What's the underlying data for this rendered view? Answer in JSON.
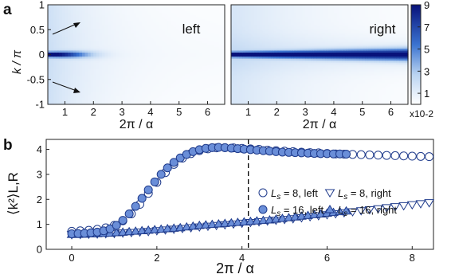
{
  "colors": {
    "heat_low": "#ffffff",
    "heat_high": "#08127a",
    "marker_edge": "#1f3b8c",
    "marker_fill": "#6a8ed8",
    "dashed_line": "#000000"
  },
  "panel_a": {
    "label": "a",
    "ylabel": "k / π",
    "xlabel": "2π / α",
    "colorbar_ticks": [
      "9",
      "7",
      "5",
      "3",
      "1"
    ],
    "colorbar_multiplier": "x10-2"
  },
  "panel_b": {
    "label": "b",
    "ylabel": "⟨k²⟩L,R",
    "xlabel": "2π / α"
  },
  "chart_data": [
    {
      "type": "heatmap",
      "title": "left",
      "xlabel": "2π / α",
      "ylabel": "k / π",
      "xlim": [
        0.4,
        6.6
      ],
      "ylim": [
        -1,
        1
      ],
      "xticks": [
        1,
        2,
        3,
        4,
        5,
        6
      ],
      "yticks": [
        1,
        0.5,
        0,
        -0.5,
        -1
      ],
      "ytick_labels": [
        "1",
        "0.5",
        "0",
        "-0.5",
        "-1"
      ],
      "annotations": [
        "arrow at k/π ≈ 0.7, 2π/α ≈ 0.9",
        "arrow at k/π ≈ -0.75, 2π/α ≈ 0.9"
      ],
      "colorbar": {
        "range": [
          0,
          0.09
        ],
        "ticks": [
          1,
          3,
          5,
          7,
          9
        ],
        "multiplier": "x10-2"
      },
      "description": "weight concentrated at k=0 for small 2π/α, decaying to near zero beyond 2π/α≈4"
    },
    {
      "type": "heatmap",
      "title": "right",
      "xlabel": "2π / α",
      "xlim": [
        0.4,
        6.6
      ],
      "ylim": [
        -1,
        1
      ],
      "xticks": [
        1,
        2,
        3,
        4,
        5,
        6
      ],
      "colorbar": {
        "range": [
          0,
          0.09
        ],
        "ticks": [
          1,
          3,
          5,
          7,
          9
        ],
        "multiplier": "x10-2"
      },
      "description": "strong band at k=0 for all 2π/α"
    },
    {
      "type": "scatter",
      "xlabel": "2π / α",
      "ylabel": "⟨k²⟩L,R",
      "xlim": [
        -0.6,
        8.5
      ],
      "ylim": [
        0,
        4.4
      ],
      "xticks": [
        0,
        2,
        4,
        6,
        8
      ],
      "yticks": [
        0,
        1,
        2,
        3,
        4
      ],
      "grid": false,
      "legend_position": "right",
      "vertical_dashed_line_x": 4.15,
      "series": [
        {
          "name": "Ls = 8, left",
          "marker": "open-circle",
          "x": [
            0.0,
            0.2,
            0.4,
            0.6,
            0.8,
            1.0,
            1.2,
            1.4,
            1.6,
            1.8,
            2.0,
            2.2,
            2.4,
            2.6,
            2.8,
            3.0,
            3.2,
            3.4,
            3.6,
            3.8,
            4.0,
            4.2,
            4.4,
            4.6,
            4.8,
            5.0,
            5.2,
            5.4,
            5.6,
            5.8,
            6.0,
            6.2,
            6.4,
            6.6,
            6.8,
            7.0,
            7.2,
            7.4,
            7.6,
            7.8,
            8.0,
            8.2,
            8.4
          ],
          "y": [
            0.72,
            0.74,
            0.76,
            0.8,
            0.86,
            0.96,
            1.14,
            1.42,
            1.8,
            2.24,
            2.68,
            3.07,
            3.4,
            3.65,
            3.83,
            3.95,
            4.02,
            4.06,
            4.07,
            4.06,
            4.04,
            4.02,
            4.0,
            3.97,
            3.95,
            3.93,
            3.91,
            3.89,
            3.87,
            3.86,
            3.84,
            3.82,
            3.81,
            3.8,
            3.79,
            3.78,
            3.77,
            3.76,
            3.75,
            3.74,
            3.73,
            3.72,
            3.71
          ]
        },
        {
          "name": "Ls = 16, left",
          "marker": "filled-circle",
          "x": [
            0.0,
            0.15,
            0.3,
            0.45,
            0.6,
            0.75,
            0.9,
            1.05,
            1.2,
            1.35,
            1.5,
            1.65,
            1.8,
            1.95,
            2.1,
            2.25,
            2.4,
            2.55,
            2.7,
            2.85,
            3.0,
            3.15,
            3.3,
            3.45,
            3.6,
            3.75,
            3.9,
            4.05,
            4.2,
            4.35,
            4.5,
            4.65,
            4.8,
            4.95,
            5.1,
            5.25,
            5.4,
            5.55,
            5.7,
            5.85,
            6.0,
            6.15,
            6.3,
            6.45
          ],
          "y": [
            0.62,
            0.63,
            0.64,
            0.66,
            0.69,
            0.74,
            0.82,
            0.96,
            1.16,
            1.42,
            1.72,
            2.04,
            2.38,
            2.7,
            3.0,
            3.26,
            3.48,
            3.66,
            3.8,
            3.91,
            3.99,
            4.04,
            4.07,
            4.08,
            4.07,
            4.05,
            4.03,
            4.01,
            3.99,
            3.97,
            3.95,
            3.93,
            3.91,
            3.89,
            3.88,
            3.87,
            3.86,
            3.85,
            3.84,
            3.83,
            3.83,
            3.82,
            3.82,
            3.81
          ]
        },
        {
          "name": "Ls = 8, right",
          "marker": "open-triangle-down",
          "x": [
            0.0,
            0.2,
            0.4,
            0.6,
            0.8,
            1.0,
            1.2,
            1.4,
            1.6,
            1.8,
            2.0,
            2.2,
            2.4,
            2.6,
            2.8,
            3.0,
            3.2,
            3.4,
            3.6,
            3.8,
            4.0,
            4.2,
            4.4,
            4.6,
            4.8,
            5.0,
            5.2,
            5.4,
            5.6,
            5.8,
            6.0,
            6.2,
            6.4,
            6.6,
            6.8,
            7.0,
            7.2,
            7.4,
            7.6,
            7.8,
            8.0,
            8.2,
            8.4
          ],
          "y": [
            0.58,
            0.59,
            0.6,
            0.61,
            0.62,
            0.63,
            0.65,
            0.67,
            0.69,
            0.71,
            0.74,
            0.77,
            0.8,
            0.83,
            0.86,
            0.89,
            0.92,
            0.95,
            0.98,
            1.01,
            1.04,
            1.07,
            1.1,
            1.13,
            1.16,
            1.19,
            1.22,
            1.26,
            1.3,
            1.34,
            1.38,
            1.42,
            1.46,
            1.5,
            1.54,
            1.58,
            1.62,
            1.66,
            1.7,
            1.74,
            1.78,
            1.82,
            1.86
          ]
        },
        {
          "name": "Ls = 16, right",
          "marker": "filled-triangle-up",
          "x": [
            0.0,
            0.15,
            0.3,
            0.45,
            0.6,
            0.75,
            0.9,
            1.05,
            1.2,
            1.35,
            1.5,
            1.65,
            1.8,
            1.95,
            2.1,
            2.25,
            2.4,
            2.55,
            2.7,
            2.85,
            3.0,
            3.15,
            3.3,
            3.45,
            3.6,
            3.75,
            3.9,
            4.05,
            4.2,
            4.35,
            4.5,
            4.65,
            4.8,
            4.95,
            5.1,
            5.25,
            5.4,
            5.55,
            5.7,
            5.85,
            6.0,
            6.15,
            6.3,
            6.45
          ],
          "y": [
            0.6,
            0.6,
            0.61,
            0.62,
            0.63,
            0.64,
            0.65,
            0.67,
            0.69,
            0.71,
            0.73,
            0.75,
            0.77,
            0.79,
            0.81,
            0.83,
            0.85,
            0.87,
            0.9,
            0.93,
            0.96,
            0.98,
            1.0,
            1.02,
            1.04,
            1.06,
            1.08,
            1.1,
            1.12,
            1.14,
            1.16,
            1.18,
            1.21,
            1.24,
            1.27,
            1.3,
            1.33,
            1.36,
            1.39,
            1.42,
            1.45,
            1.48,
            1.51,
            1.54
          ]
        }
      ]
    }
  ]
}
